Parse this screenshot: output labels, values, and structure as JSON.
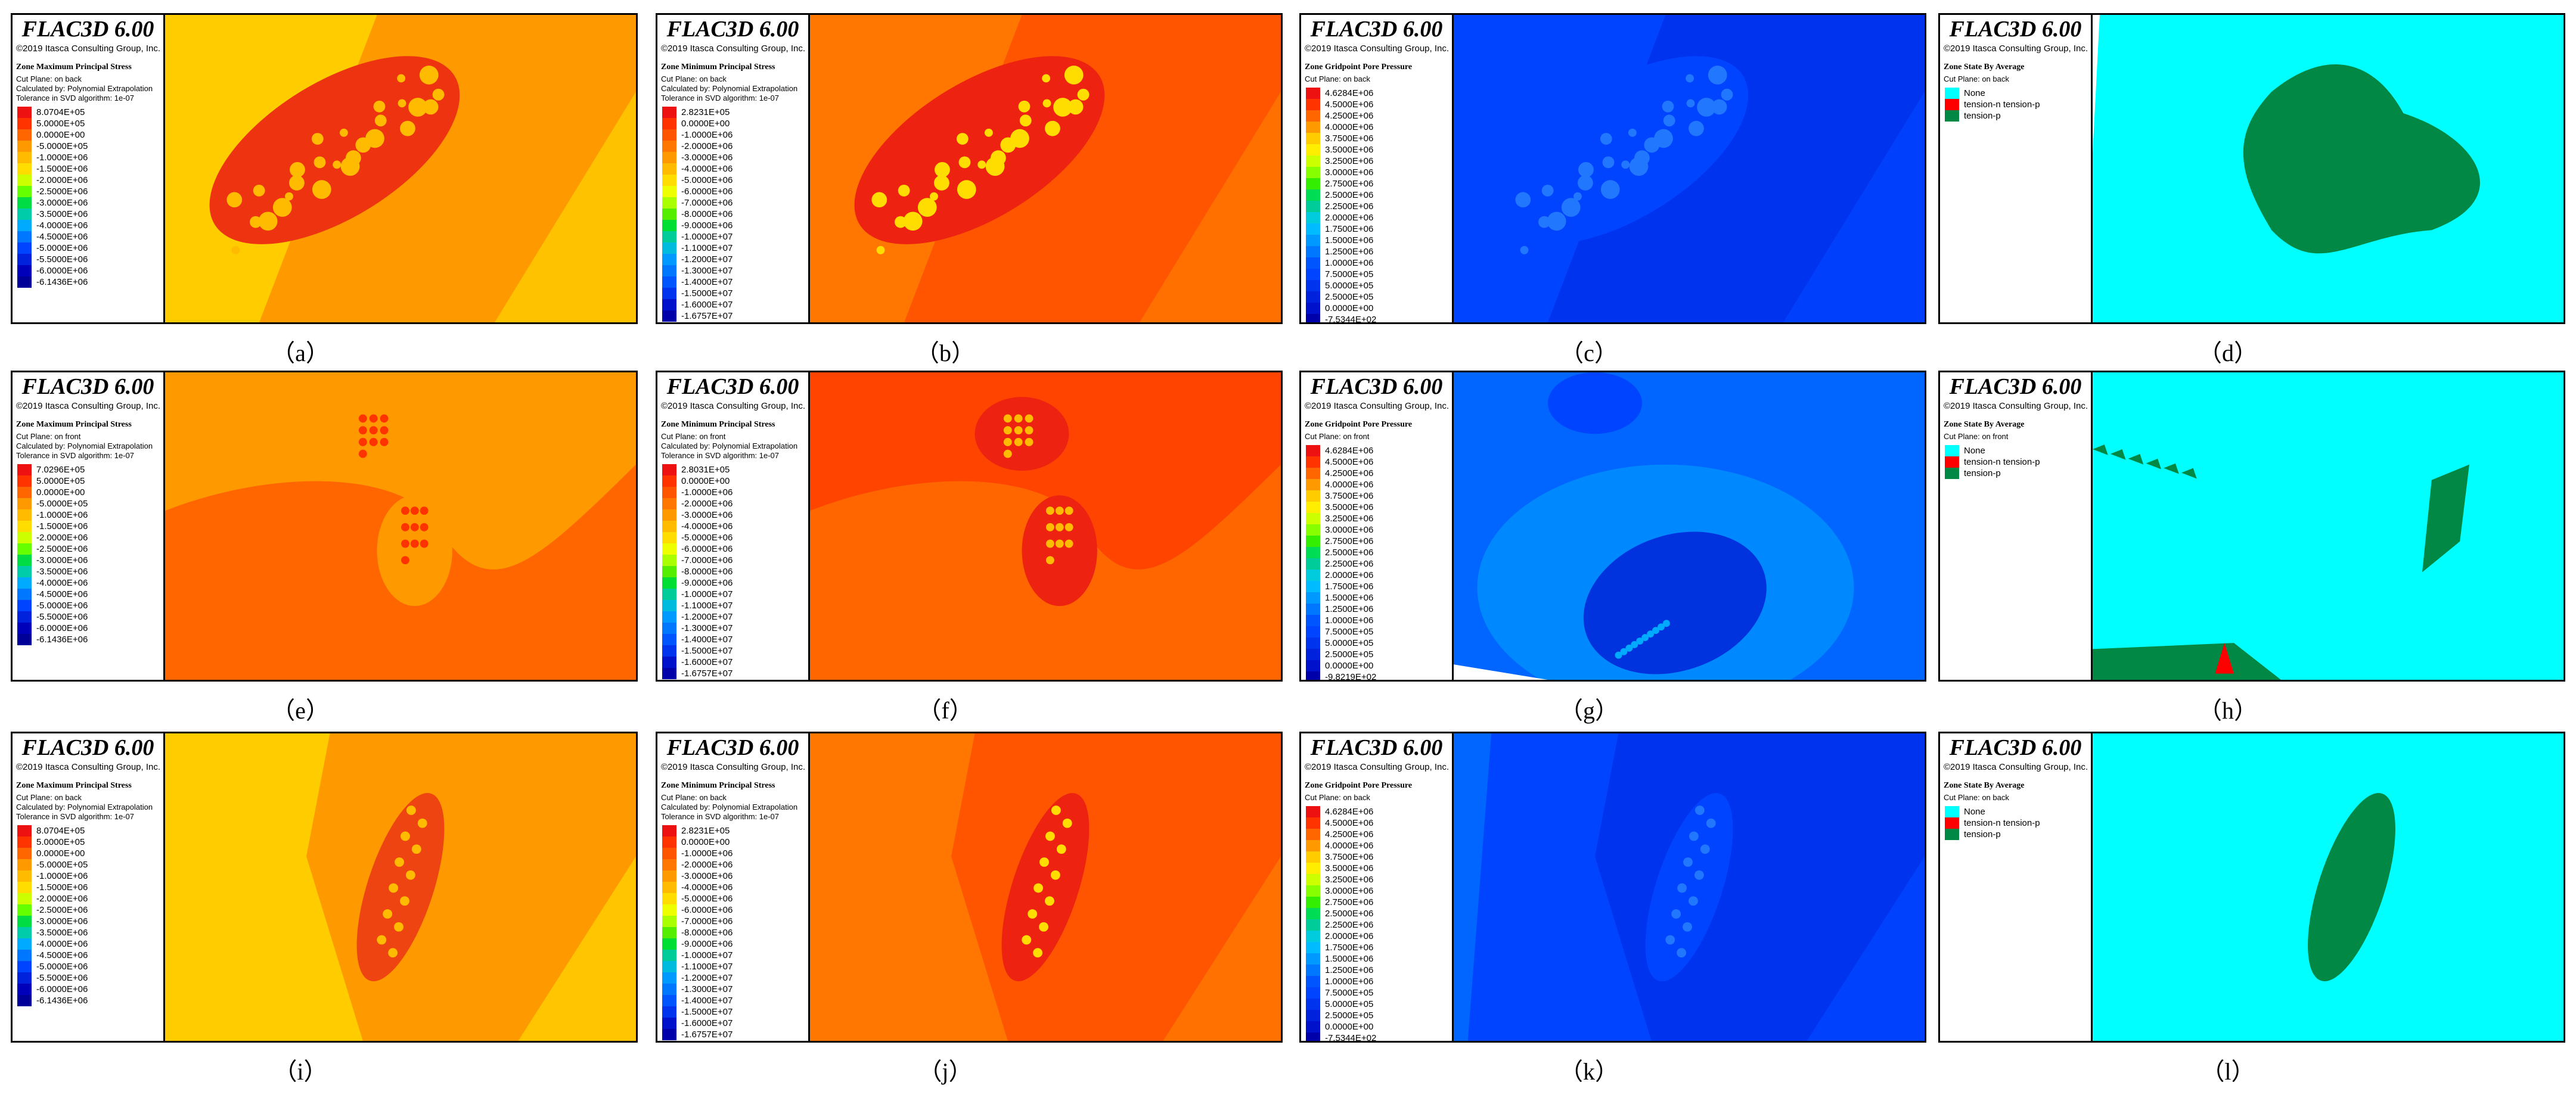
{
  "header": {
    "product": "FLAC3D 6.00",
    "copyright": "©2019 Itasca Consulting Group, Inc."
  },
  "legend_sets": {
    "max": [
      "8.0704E+05",
      "5.0000E+05",
      "0.0000E+00",
      "-5.0000E+05",
      "-1.0000E+06",
      "-1.5000E+06",
      "-2.0000E+06",
      "-2.5000E+06",
      "-3.0000E+06",
      "-3.5000E+06",
      "-4.0000E+06",
      "-4.5000E+06",
      "-5.0000E+06",
      "-5.5000E+06",
      "-6.0000E+06",
      "-6.1436E+06"
    ],
    "max_front": [
      "7.0296E+05",
      "5.0000E+05",
      "0.0000E+00",
      "-5.0000E+05",
      "-1.0000E+06",
      "-1.5000E+06",
      "-2.0000E+06",
      "-2.5000E+06",
      "-3.0000E+06",
      "-3.5000E+06",
      "-4.0000E+06",
      "-4.5000E+06",
      "-5.0000E+06",
      "-5.5000E+06",
      "-6.0000E+06",
      "-6.1436E+06"
    ],
    "min": [
      "2.8231E+05",
      "0.0000E+00",
      "-1.0000E+06",
      "-2.0000E+06",
      "-3.0000E+06",
      "-4.0000E+06",
      "-5.0000E+06",
      "-6.0000E+06",
      "-7.0000E+06",
      "-8.0000E+06",
      "-9.0000E+06",
      "-1.0000E+07",
      "-1.1000E+07",
      "-1.2000E+07",
      "-1.3000E+07",
      "-1.4000E+07",
      "-1.5000E+07",
      "-1.6000E+07",
      "-1.6757E+07"
    ],
    "min_front": [
      "2.8031E+05",
      "0.0000E+00",
      "-1.0000E+06",
      "-2.0000E+06",
      "-3.0000E+06",
      "-4.0000E+06",
      "-5.0000E+06",
      "-6.0000E+06",
      "-7.0000E+06",
      "-8.0000E+06",
      "-9.0000E+06",
      "-1.0000E+07",
      "-1.1000E+07",
      "-1.2000E+07",
      "-1.3000E+07",
      "-1.4000E+07",
      "-1.5000E+07",
      "-1.6000E+07",
      "-1.6757E+07"
    ],
    "pore": [
      "4.6284E+06",
      "4.5000E+06",
      "4.2500E+06",
      "4.0000E+06",
      "3.7500E+06",
      "3.5000E+06",
      "3.2500E+06",
      "3.0000E+06",
      "2.7500E+06",
      "2.5000E+06",
      "2.2500E+06",
      "2.0000E+06",
      "1.7500E+06",
      "1.5000E+06",
      "1.2500E+06",
      "1.0000E+06",
      "7.5000E+05",
      "5.0000E+05",
      "2.5000E+05",
      "0.0000E+00",
      "-7.5344E+02"
    ],
    "pore_front": [
      "4.6284E+06",
      "4.5000E+06",
      "4.2500E+06",
      "4.0000E+06",
      "3.7500E+06",
      "3.5000E+06",
      "3.2500E+06",
      "3.0000E+06",
      "2.7500E+06",
      "2.5000E+06",
      "2.2500E+06",
      "2.0000E+06",
      "1.7500E+06",
      "1.5000E+06",
      "1.2500E+06",
      "1.0000E+06",
      "7.5000E+05",
      "5.0000E+05",
      "2.5000E+05",
      "0.0000E+00",
      "-9.8219E+02"
    ],
    "state": [
      "None",
      "tension-n tension-p",
      "tension-p"
    ]
  },
  "legend_colors": {
    "max": [
      "#ee1111",
      "#ff3300",
      "#ff6600",
      "#ff9900",
      "#ffbb00",
      "#ffdd00",
      "#ccff00",
      "#66ff00",
      "#00dd44",
      "#00ccaa",
      "#00aaff",
      "#0077ff",
      "#0044ff",
      "#0022dd",
      "#0000bb",
      "#000099"
    ],
    "min": [
      "#ee1111",
      "#ff3300",
      "#ff5500",
      "#ff7700",
      "#ff9900",
      "#ffbb00",
      "#ffdd00",
      "#eeff00",
      "#aaff00",
      "#55ee00",
      "#00dd33",
      "#00cc99",
      "#00bbdd",
      "#0099ff",
      "#0077ff",
      "#0055ff",
      "#0033ee",
      "#0011cc",
      "#0000aa"
    ],
    "pore": [
      "#ee1111",
      "#ff3300",
      "#ff6600",
      "#ff9900",
      "#ffcc00",
      "#ffee00",
      "#ccff00",
      "#88ff00",
      "#33ee00",
      "#00dd55",
      "#00cc99",
      "#00ccdd",
      "#00bbff",
      "#0099ff",
      "#0077ff",
      "#0055ff",
      "#0044ff",
      "#0033ee",
      "#0022dd",
      "#0011cc",
      "#0000aa"
    ],
    "state": [
      "#00ffff",
      "#ff0000",
      "#008844"
    ]
  },
  "panels": [
    {
      "id": "a",
      "caption": "（a）",
      "quantity": "Zone Maximum Principal Stress",
      "cut": "Cut Plane: on back",
      "calc": "Calculated by: Polynomial Extrapolation",
      "tol": "Tolerance in SVD algorithm: 1e-07",
      "legend": "max",
      "colors": "max",
      "bg": "#ff9900",
      "field": "#ffcc00",
      "body": "#ee3311",
      "inner": "#ffbb00",
      "shape": "diag"
    },
    {
      "id": "b",
      "caption": "（b）",
      "quantity": "Zone Minimum Principal Stress",
      "cut": "Cut Plane: on back",
      "calc": "Calculated by: Polynomial Extrapolation",
      "tol": "Tolerance in SVD algorithm: 1e-07",
      "legend": "min",
      "colors": "min",
      "bg": "#ff5500",
      "field": "#ff7700",
      "body": "#ee2211",
      "inner": "#ffdd00",
      "shape": "diag"
    },
    {
      "id": "c",
      "caption": "（c）",
      "quantity": "Zone Gridpoint Pore Pressure",
      "cut": "Cut Plane: on back",
      "calc": "",
      "tol": "",
      "legend": "pore",
      "colors": "pore",
      "bg": "#0033ee",
      "field": "#0044ff",
      "body": "#0044ff",
      "inner": "#2277ff",
      "shape": "diag"
    },
    {
      "id": "d",
      "caption": "（d）",
      "quantity": "Zone State By Average",
      "cut": "Cut Plane: on back",
      "calc": "",
      "tol": "",
      "legend": "state",
      "colors": "state",
      "bg": "#00ffff",
      "field": "#00ffff",
      "body": "#008844",
      "inner": "#008844",
      "shape": "blob"
    },
    {
      "id": "e",
      "caption": "（e）",
      "quantity": "Zone Maximum Principal Stress",
      "cut": "Cut Plane: on front",
      "calc": "Calculated by: Polynomial Extrapolation",
      "tol": "Tolerance in SVD algorithm: 1e-07",
      "legend": "max_front",
      "colors": "max",
      "bg": "#ff9900",
      "field": "#ff6600",
      "body": "#ff9900",
      "inner": "#ff3300",
      "shape": "two"
    },
    {
      "id": "f",
      "caption": "（f）",
      "quantity": "Zone Minimum Principal Stress",
      "cut": "Cut Plane: on front",
      "calc": "Calculated by: Polynomial Extrapolation",
      "tol": "Tolerance in SVD algorithm: 1e-07",
      "legend": "min_front",
      "colors": "min",
      "bg": "#ff4400",
      "field": "#ff6600",
      "body": "#ee2211",
      "inner": "#ffbb00",
      "shape": "two"
    },
    {
      "id": "g",
      "caption": "（g）",
      "quantity": "Zone Gridpoint Pore Pressure",
      "cut": "Cut Plane: on front",
      "calc": "",
      "tol": "",
      "legend": "pore_front",
      "colors": "pore",
      "bg": "#0066ff",
      "field": "#0044ff",
      "body": "#0033dd",
      "inner": "#00aaff",
      "shape": "ring"
    },
    {
      "id": "h",
      "caption": "（h）",
      "quantity": "Zone State By Average",
      "cut": "Cut Plane: on front",
      "calc": "",
      "tol": "",
      "legend": "state",
      "colors": "state",
      "bg": "#00ffff",
      "field": "#00ffff",
      "body": "#008844",
      "inner": "#008844",
      "shape": "sparse"
    },
    {
      "id": "i",
      "caption": "（i）",
      "quantity": "Zone Maximum Principal Stress",
      "cut": "Cut Plane: on back",
      "calc": "Calculated by: Polynomial Extrapolation",
      "tol": "Tolerance in SVD algorithm: 1e-07",
      "legend": "max",
      "colors": "max",
      "bg": "#ff9900",
      "field": "#ffcc00",
      "body": "#ee4411",
      "inner": "#ffbb00",
      "shape": "vert"
    },
    {
      "id": "j",
      "caption": "（j）",
      "quantity": "Zone Minimum Principal Stress",
      "cut": "Cut Plane: on back",
      "calc": "Calculated by: Polynomial Extrapolation",
      "tol": "Tolerance in SVD algorithm: 1e-07",
      "legend": "min",
      "colors": "min",
      "bg": "#ff5500",
      "field": "#ff7700",
      "body": "#ee2211",
      "inner": "#ffdd00",
      "shape": "vert"
    },
    {
      "id": "k",
      "caption": "（k）",
      "quantity": "Zone Gridpoint Pore Pressure",
      "cut": "Cut Plane: on back",
      "calc": "",
      "tol": "",
      "legend": "pore",
      "colors": "pore",
      "bg": "#0033ee",
      "field": "#0044ff",
      "body": "#0044ff",
      "inner": "#2277ff",
      "shape": "vert"
    },
    {
      "id": "l",
      "caption": "（l）",
      "quantity": "Zone State By Average",
      "cut": "Cut Plane: on back",
      "calc": "",
      "tol": "",
      "legend": "state",
      "colors": "state",
      "bg": "#00ffff",
      "field": "#00ffff",
      "body": "#008844",
      "inner": "#008844",
      "shape": "vertsmall"
    }
  ]
}
